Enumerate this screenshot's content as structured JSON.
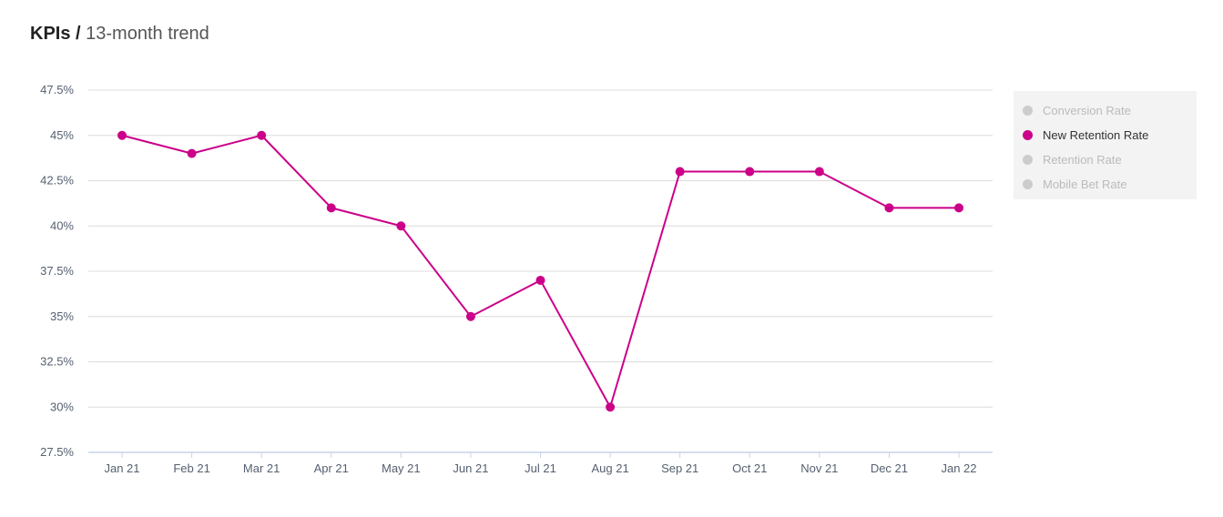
{
  "header": {
    "title_bold": "KPIs /",
    "title_rest": "13-month trend"
  },
  "colors": {
    "series": "#cc0088",
    "grid": "#dcdcdc",
    "axis": "#c8d4e8",
    "tick": "#556070",
    "inactive": "#cccccc"
  },
  "legend": {
    "items": [
      {
        "label": "Conversion Rate",
        "active": false
      },
      {
        "label": "New Retention Rate",
        "active": true
      },
      {
        "label": "Retention Rate",
        "active": false
      },
      {
        "label": "Mobile Bet Rate",
        "active": false
      }
    ]
  },
  "chart_data": {
    "type": "line",
    "categories": [
      "Jan 21",
      "Feb 21",
      "Mar 21",
      "Apr 21",
      "May 21",
      "Jun 21",
      "Jul 21",
      "Aug 21",
      "Sep 21",
      "Oct 21",
      "Nov 21",
      "Dec 21",
      "Jan 22"
    ],
    "series": [
      {
        "name": "New Retention Rate",
        "values": [
          45,
          44,
          45,
          41,
          40,
          35,
          37,
          30,
          43,
          43,
          43,
          41,
          41
        ]
      }
    ],
    "ylim": [
      27.5,
      47.5
    ],
    "yticks": [
      27.5,
      30,
      32.5,
      35,
      37.5,
      40,
      42.5,
      45,
      47.5
    ],
    "ytick_labels": [
      "27.5%",
      "30%",
      "32.5%",
      "35%",
      "37.5%",
      "40%",
      "42.5%",
      "45%",
      "47.5%"
    ],
    "grid": true,
    "legend_position": "right"
  }
}
